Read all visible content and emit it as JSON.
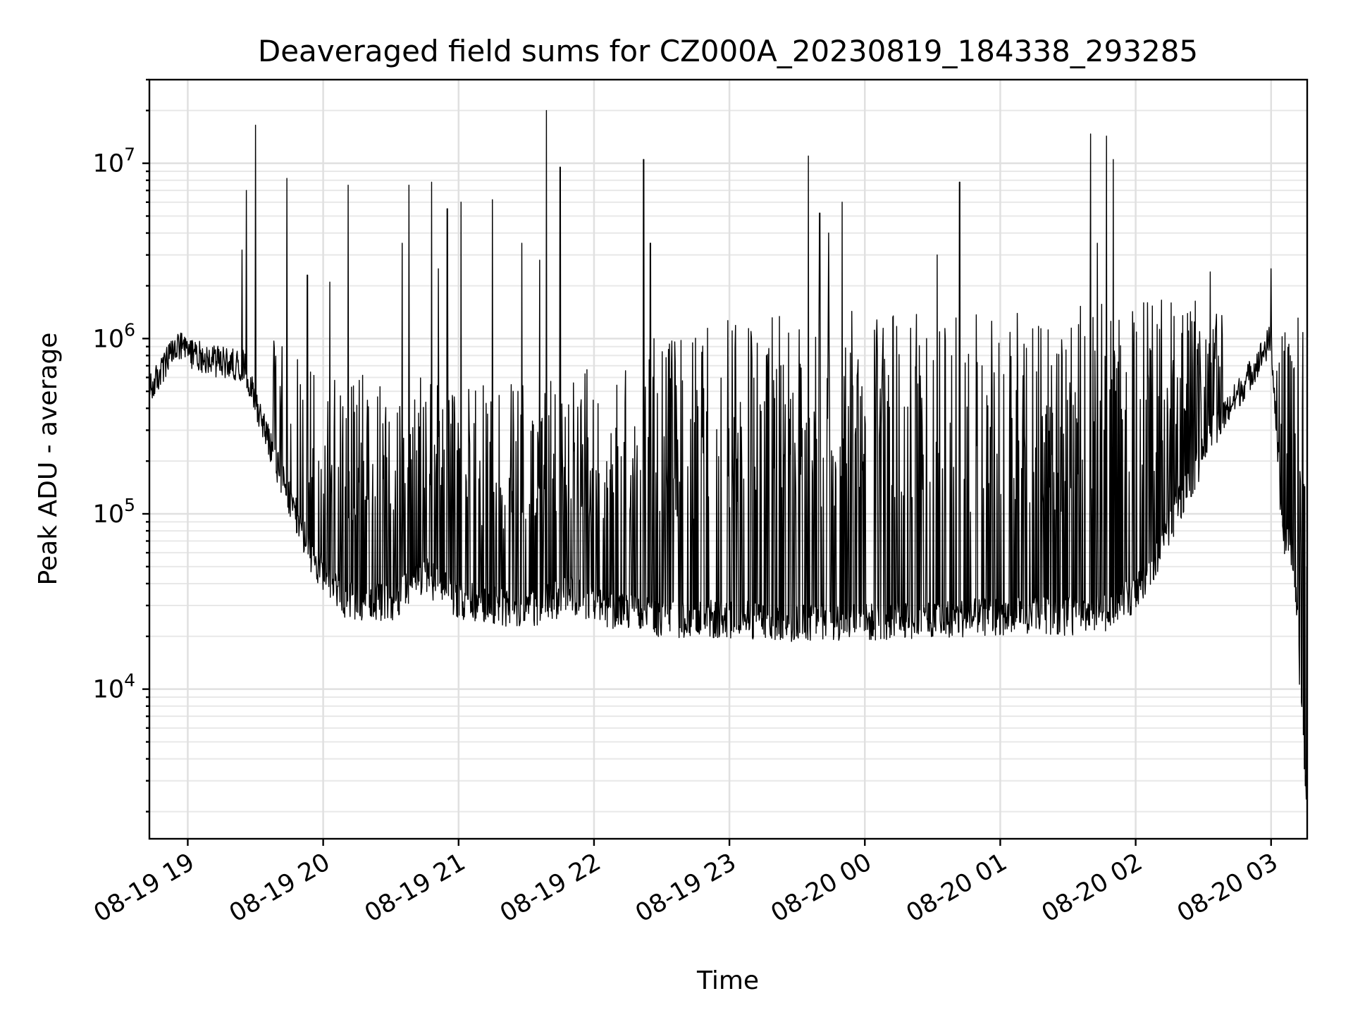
{
  "chart_data": {
    "type": "line",
    "title": "Deaveraged field sums for CZ000A_20230819_184338_293285",
    "xlabel": "Time",
    "ylabel": "Peak ADU - average",
    "yscale": "log",
    "ylim": [
      1400,
      30000000
    ],
    "xlim": [
      "2023-08-19 18:43",
      "2023-08-20 03:16"
    ],
    "grid": true,
    "line_color": "#000000",
    "x_ticks": [
      "08-19 19",
      "08-19 20",
      "08-19 21",
      "08-19 22",
      "08-19 23",
      "08-20 00",
      "08-20 01",
      "08-20 02",
      "08-20 03"
    ],
    "y_ticks": [
      {
        "base": "10",
        "exp": "4",
        "value": 10000
      },
      {
        "base": "10",
        "exp": "5",
        "value": 100000
      },
      {
        "base": "10",
        "exp": "6",
        "value": 1000000
      },
      {
        "base": "10",
        "exp": "7",
        "value": 10000000
      }
    ],
    "baseline": [
      [
        "2023-08-19 18:43",
        500000
      ],
      [
        "2023-08-19 18:55",
        900000
      ],
      [
        "2023-08-19 19:10",
        750000
      ],
      [
        "2023-08-19 19:25",
        700000
      ],
      [
        "2023-08-19 19:40",
        180000
      ],
      [
        "2023-08-19 19:55",
        55000
      ],
      [
        "2023-08-19 20:10",
        32000
      ],
      [
        "2023-08-19 20:30",
        31000
      ],
      [
        "2023-08-19 20:45",
        45000
      ],
      [
        "2023-08-19 21:00",
        32000
      ],
      [
        "2023-08-19 21:30",
        28000
      ],
      [
        "2023-08-19 21:50",
        35000
      ],
      [
        "2023-08-19 22:00",
        30000
      ],
      [
        "2023-08-19 22:30",
        25000
      ],
      [
        "2023-08-19 23:00",
        25000
      ],
      [
        "2023-08-19 23:30",
        24000
      ],
      [
        "2023-08-20 00:00",
        24000
      ],
      [
        "2023-08-20 00:30",
        25000
      ],
      [
        "2023-08-20 01:00",
        26000
      ],
      [
        "2023-08-20 01:30",
        26000
      ],
      [
        "2023-08-20 01:50",
        28000
      ],
      [
        "2023-08-20 02:05",
        40000
      ],
      [
        "2023-08-20 02:20",
        120000
      ],
      [
        "2023-08-20 02:35",
        300000
      ],
      [
        "2023-08-20 02:50",
        600000
      ],
      [
        "2023-08-20 03:00",
        1000000
      ],
      [
        "2023-08-20 03:05",
        80000
      ],
      [
        "2023-08-20 03:10",
        60000
      ],
      [
        "2023-08-20 03:14",
        6000
      ],
      [
        "2023-08-20 03:16",
        2000
      ]
    ],
    "upper_envelope": [
      [
        "2023-08-19 18:43",
        600000
      ],
      [
        "2023-08-19 19:00",
        1100000
      ],
      [
        "2023-08-19 19:30",
        1200000
      ],
      [
        "2023-08-19 20:00",
        500000
      ],
      [
        "2023-08-19 20:30",
        600000
      ],
      [
        "2023-08-19 21:00",
        450000
      ],
      [
        "2023-08-19 21:30",
        550000
      ],
      [
        "2023-08-19 22:00",
        600000
      ],
      [
        "2023-08-19 22:30",
        900000
      ],
      [
        "2023-08-19 23:00",
        1100000
      ],
      [
        "2023-08-19 23:30",
        1150000
      ],
      [
        "2023-08-20 00:00",
        1200000
      ],
      [
        "2023-08-20 00:30",
        1200000
      ],
      [
        "2023-08-20 01:00",
        1250000
      ],
      [
        "2023-08-20 01:30",
        1300000
      ],
      [
        "2023-08-20 02:00",
        1400000
      ],
      [
        "2023-08-20 02:30",
        1500000
      ],
      [
        "2023-08-20 03:00",
        1200000
      ]
    ],
    "spikes": [
      [
        "2023-08-19 19:26",
        7000000
      ],
      [
        "2023-08-19 19:30",
        16500000
      ],
      [
        "2023-08-19 19:24",
        3200000
      ],
      [
        "2023-08-19 19:44",
        8200000
      ],
      [
        "2023-08-19 19:53",
        2300000
      ],
      [
        "2023-08-19 20:11",
        7500000
      ],
      [
        "2023-08-19 20:03",
        2100000
      ],
      [
        "2023-08-19 20:35",
        3500000
      ],
      [
        "2023-08-19 20:38",
        7500000
      ],
      [
        "2023-08-19 20:48",
        7800000
      ],
      [
        "2023-08-19 20:51",
        2500000
      ],
      [
        "2023-08-19 20:55",
        5500000
      ],
      [
        "2023-08-19 21:01",
        6000000
      ],
      [
        "2023-08-19 21:15",
        6200000
      ],
      [
        "2023-08-19 21:28",
        3500000
      ],
      [
        "2023-08-19 21:36",
        2800000
      ],
      [
        "2023-08-19 21:39",
        20000000
      ],
      [
        "2023-08-19 21:45",
        9500000
      ],
      [
        "2023-08-19 22:22",
        10500000
      ],
      [
        "2023-08-19 22:25",
        3500000
      ],
      [
        "2023-08-19 23:35",
        11000000
      ],
      [
        "2023-08-19 23:40",
        5200000
      ],
      [
        "2023-08-19 23:44",
        4000000
      ],
      [
        "2023-08-19 23:50",
        6000000
      ],
      [
        "2023-08-20 00:32",
        3000000
      ],
      [
        "2023-08-20 00:42",
        7800000
      ],
      [
        "2023-08-20 01:40",
        14700000
      ],
      [
        "2023-08-20 01:43",
        3500000
      ],
      [
        "2023-08-20 01:47",
        14300000
      ],
      [
        "2023-08-20 01:50",
        10500000
      ],
      [
        "2023-08-20 02:33",
        2400000
      ],
      [
        "2023-08-20 03:00",
        2500000
      ],
      [
        "2023-08-20 03:07",
        220000
      ]
    ]
  }
}
